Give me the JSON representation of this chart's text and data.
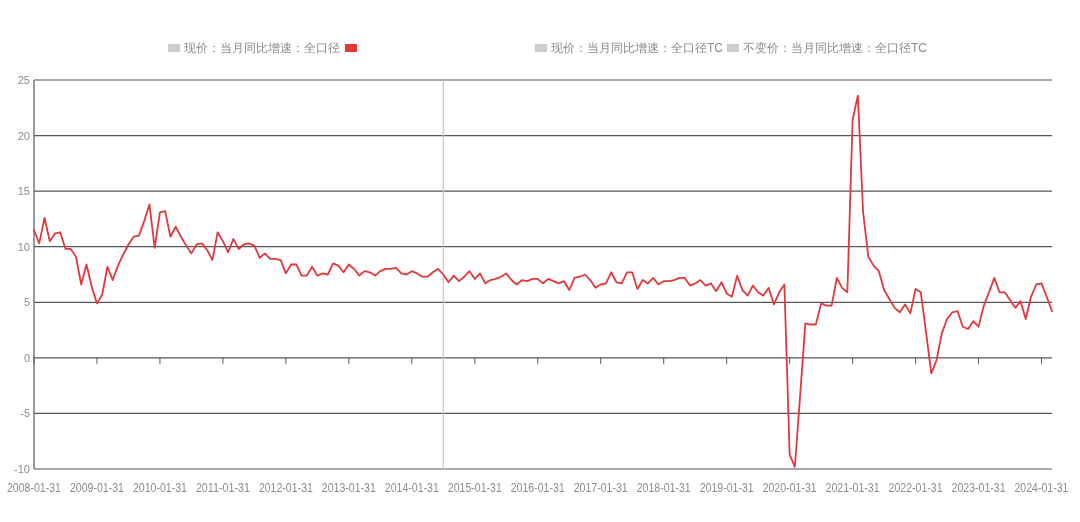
{
  "chart_data": {
    "type": "line",
    "x": [
      "2008-01",
      "2008-02",
      "2008-03",
      "2008-04",
      "2008-05",
      "2008-06",
      "2008-07",
      "2008-08",
      "2008-09",
      "2008-10",
      "2008-11",
      "2008-12",
      "2009-01",
      "2009-02",
      "2009-03",
      "2009-04",
      "2009-05",
      "2009-06",
      "2009-07",
      "2009-08",
      "2009-09",
      "2009-10",
      "2009-11",
      "2009-12",
      "2010-01",
      "2010-02",
      "2010-03",
      "2010-04",
      "2010-05",
      "2010-06",
      "2010-07",
      "2010-08",
      "2010-09",
      "2010-10",
      "2010-11",
      "2010-12",
      "2011-01",
      "2011-02",
      "2011-03",
      "2011-04",
      "2011-05",
      "2011-06",
      "2011-07",
      "2011-08",
      "2011-09",
      "2011-10",
      "2011-11",
      "2011-12",
      "2012-01",
      "2012-02",
      "2012-03",
      "2012-04",
      "2012-05",
      "2012-06",
      "2012-07",
      "2012-08",
      "2012-09",
      "2012-10",
      "2012-11",
      "2012-12",
      "2013-01",
      "2013-02",
      "2013-03",
      "2013-04",
      "2013-05",
      "2013-06",
      "2013-07",
      "2013-08",
      "2013-09",
      "2013-10",
      "2013-11",
      "2013-12",
      "2014-01",
      "2014-02",
      "2014-03",
      "2014-04",
      "2014-05",
      "2014-06",
      "2014-07",
      "2014-08",
      "2014-09",
      "2014-10",
      "2014-11",
      "2014-12",
      "2015-01",
      "2015-02",
      "2015-03",
      "2015-04",
      "2015-05",
      "2015-06",
      "2015-07",
      "2015-08",
      "2015-09",
      "2015-10",
      "2015-11",
      "2015-12",
      "2016-01",
      "2016-02",
      "2016-03",
      "2016-04",
      "2016-05",
      "2016-06",
      "2016-07",
      "2016-08",
      "2016-09",
      "2016-10",
      "2016-11",
      "2016-12",
      "2017-01",
      "2017-02",
      "2017-03",
      "2017-04",
      "2017-05",
      "2017-06",
      "2017-07",
      "2017-08",
      "2017-09",
      "2017-10",
      "2017-11",
      "2017-12",
      "2018-01",
      "2018-02",
      "2018-03",
      "2018-04",
      "2018-05",
      "2018-06",
      "2018-07",
      "2018-08",
      "2018-09",
      "2018-10",
      "2018-11",
      "2018-12",
      "2019-01",
      "2019-02",
      "2019-03",
      "2019-04",
      "2019-05",
      "2019-06",
      "2019-07",
      "2019-08",
      "2019-09",
      "2019-10",
      "2019-11",
      "2019-12",
      "2020-01",
      "2020-02",
      "2020-03",
      "2020-04",
      "2020-05",
      "2020-06",
      "2020-07",
      "2020-08",
      "2020-09",
      "2020-10",
      "2020-11",
      "2020-12",
      "2021-01",
      "2021-02",
      "2021-03",
      "2021-04",
      "2021-05",
      "2021-06",
      "2021-07",
      "2021-08",
      "2021-09",
      "2021-10",
      "2021-11",
      "2021-12",
      "2022-01",
      "2022-02",
      "2022-03",
      "2022-04",
      "2022-05",
      "2022-06",
      "2022-07",
      "2022-08",
      "2022-09",
      "2022-10",
      "2022-11",
      "2022-12",
      "2023-01",
      "2023-02",
      "2023-03",
      "2023-04",
      "2023-05",
      "2023-06",
      "2023-07",
      "2023-08",
      "2023-09",
      "2023-10",
      "2023-11",
      "2023-12",
      "2024-01",
      "2024-02",
      "2024-03"
    ],
    "series": [
      {
        "name": "现价：当月同比增速：全口径",
        "color": "#cccccc",
        "values": [
          null,
          null,
          null,
          null,
          null,
          null,
          null,
          null,
          null,
          null,
          null,
          null,
          null,
          null,
          null,
          null,
          null,
          null,
          null,
          null,
          null,
          null,
          null,
          null,
          null,
          null,
          null,
          null,
          null,
          null,
          null,
          null,
          null,
          null,
          null,
          null,
          null,
          null,
          null,
          null,
          null,
          null,
          null,
          null,
          null,
          null,
          null,
          null,
          null,
          null,
          null,
          null,
          null,
          null,
          null,
          null,
          null,
          null,
          null,
          null,
          null,
          null,
          null,
          null,
          null,
          null,
          null,
          null,
          null,
          null,
          null,
          null,
          null,
          null,
          null,
          null,
          null,
          null,
          null,
          null,
          null,
          null,
          null,
          null,
          null,
          null,
          null,
          null,
          null,
          null,
          null,
          null,
          null,
          null,
          null,
          null,
          null,
          null,
          null,
          null,
          null,
          null,
          null,
          null,
          null,
          null,
          null,
          null,
          null,
          null,
          null,
          null,
          null,
          null,
          null,
          null,
          null,
          null,
          null,
          null,
          null,
          null,
          null,
          null,
          null,
          null,
          null,
          null,
          null,
          null,
          null,
          null,
          null,
          null,
          null,
          null,
          null,
          null,
          null,
          null,
          null,
          null,
          null,
          null,
          null,
          null,
          null,
          null,
          null,
          null,
          null,
          null,
          null,
          null,
          null,
          null,
          null,
          null,
          null,
          null,
          null,
          null,
          null,
          null,
          null,
          null,
          null,
          null,
          null,
          null,
          null,
          null,
          null,
          null,
          null,
          null,
          null,
          null,
          null,
          null,
          null,
          null,
          null,
          null,
          null,
          null,
          null,
          null,
          null,
          null,
          null,
          null,
          null,
          null,
          null
        ]
      },
      {
        "color": "#e0393e",
        "values": [
          11.5,
          10.3,
          12.6,
          10.5,
          11.2,
          11.3,
          9.8,
          9.8,
          9.1,
          6.6,
          8.4,
          6.4,
          4.9,
          5.7,
          8.2,
          7.0,
          8.3,
          9.3,
          10.2,
          10.9,
          11.0,
          12.3,
          13.8,
          9.9,
          13.1,
          13.2,
          10.9,
          11.8,
          10.9,
          10.1,
          9.4,
          10.2,
          10.3,
          9.7,
          8.8,
          11.3,
          10.5,
          9.5,
          10.7,
          9.8,
          10.2,
          10.3,
          10.1,
          9.0,
          9.4,
          8.9,
          8.9,
          8.8,
          7.6,
          8.4,
          8.4,
          7.4,
          7.4,
          8.2,
          7.4,
          7.6,
          7.5,
          8.5,
          8.3,
          7.7,
          8.4,
          8.0,
          7.4,
          7.8,
          7.7,
          7.4,
          7.8,
          8.0,
          8.0,
          8.1,
          7.6,
          7.5,
          7.8,
          7.6,
          7.3,
          7.3,
          7.7,
          8.0,
          7.5,
          6.8,
          7.4,
          6.9,
          7.3,
          7.8,
          7.1,
          7.6,
          6.7,
          7.0,
          7.1,
          7.3,
          7.6,
          7.0,
          6.6,
          7.0,
          6.9,
          7.1,
          7.1,
          6.7,
          7.1,
          6.9,
          6.7,
          6.9,
          6.1,
          7.2,
          7.3,
          7.5,
          7.0,
          6.3,
          6.6,
          6.7,
          7.7,
          6.8,
          6.7,
          7.7,
          7.7,
          6.2,
          7.0,
          6.7,
          7.2,
          6.6,
          6.9,
          6.9,
          7.0,
          7.2,
          7.2,
          6.5,
          6.7,
          7.0,
          6.5,
          6.7,
          6.0,
          6.8,
          5.8,
          5.5,
          7.4,
          6.1,
          5.6,
          6.5,
          5.9,
          5.6,
          6.3,
          4.8,
          5.9,
          6.6,
          -8.7,
          -9.8,
          -3.4,
          3.1,
          3.0,
          3.0,
          4.9,
          4.7,
          4.7,
          7.2,
          6.3,
          5.9,
          21.4,
          23.6,
          13.1,
          9.1,
          8.3,
          7.8,
          6.1,
          5.3,
          4.5,
          4.1,
          4.8,
          4.0,
          6.2,
          5.9,
          2.3,
          -1.4,
          -0.2,
          2.2,
          3.5,
          4.1,
          4.2,
          2.8,
          2.6,
          3.3,
          2.8,
          4.7,
          5.9,
          7.2,
          5.9,
          5.9,
          5.2,
          4.5,
          5.1,
          3.5,
          5.5,
          6.6,
          6.7,
          5.5,
          4.2
        ]
      },
      {
        "name": "现价：当月同比增速：全口径TC",
        "color": "#cccccc",
        "values": [
          null,
          null,
          null,
          null,
          null,
          null,
          null,
          null,
          null,
          null,
          null,
          null,
          null,
          null,
          null,
          null,
          null,
          null,
          null,
          null,
          null,
          null,
          null,
          null,
          null,
          null,
          null,
          null,
          null,
          null,
          null,
          null,
          null,
          null,
          null,
          null,
          null,
          null,
          null,
          null,
          null,
          null,
          null,
          null,
          null,
          null,
          null,
          null,
          null,
          null,
          null,
          null,
          null,
          null,
          null,
          null,
          null,
          null,
          null,
          null,
          null,
          null,
          null,
          null,
          null,
          null,
          null,
          null,
          null,
          null,
          null,
          null,
          null,
          null,
          null,
          null,
          null,
          null,
          null,
          null,
          null,
          null,
          null,
          null,
          null,
          null,
          null,
          null,
          null,
          null,
          null,
          null,
          null,
          null,
          null,
          null,
          null,
          null,
          null,
          null,
          null,
          null,
          null,
          null,
          null,
          null,
          null,
          null,
          null,
          null,
          null,
          null,
          null,
          null,
          null,
          null,
          null,
          null,
          null,
          null,
          null,
          null,
          null,
          null,
          null,
          null,
          null,
          null,
          null,
          null,
          null,
          null,
          null,
          null,
          null,
          null,
          null,
          null,
          null,
          null,
          null,
          null,
          null,
          null,
          null,
          null,
          null,
          null,
          null,
          null,
          null,
          null,
          null,
          null,
          null,
          null,
          null,
          null,
          null,
          null,
          null,
          null,
          null,
          null,
          null,
          null,
          null,
          null,
          null,
          null,
          null,
          null,
          null,
          null,
          null,
          null,
          null,
          null,
          null,
          null,
          null,
          null,
          null,
          null,
          null,
          null,
          null,
          null,
          null,
          null,
          null,
          null,
          null,
          null,
          null
        ]
      },
      {
        "name": "不变价：当月同比增速：全口径TC",
        "color": "#cccccc",
        "values": [
          null,
          null,
          null,
          null,
          null,
          null,
          null,
          null,
          null,
          null,
          null,
          null,
          null,
          null,
          null,
          null,
          null,
          null,
          null,
          null,
          null,
          null,
          null,
          null,
          null,
          null,
          null,
          null,
          null,
          null,
          null,
          null,
          null,
          null,
          null,
          null,
          null,
          null,
          null,
          null,
          null,
          null,
          null,
          null,
          null,
          null,
          null,
          null,
          null,
          null,
          null,
          null,
          null,
          null,
          null,
          null,
          null,
          null,
          null,
          null,
          null,
          null,
          null,
          null,
          null,
          null,
          null,
          null,
          null,
          null,
          null,
          null,
          null,
          null,
          null,
          null,
          null,
          null,
          null,
          null,
          null,
          null,
          null,
          null,
          null,
          null,
          null,
          null,
          null,
          null,
          null,
          null,
          null,
          null,
          null,
          null,
          null,
          null,
          null,
          null,
          null,
          null,
          null,
          null,
          null,
          null,
          null,
          null,
          null,
          null,
          null,
          null,
          null,
          null,
          null,
          null,
          null,
          null,
          null,
          null,
          null,
          null,
          null,
          null,
          null,
          null,
          null,
          null,
          null,
          null,
          null,
          null,
          null,
          null,
          null,
          null,
          null,
          null,
          null,
          null,
          null,
          null,
          null,
          null,
          null,
          null,
          null,
          null,
          null,
          null,
          null,
          null,
          null,
          null,
          null,
          null,
          null,
          null,
          null,
          null,
          null,
          null,
          null,
          null,
          null,
          null,
          null,
          null,
          null,
          null,
          null,
          null,
          null,
          null,
          null,
          null,
          null,
          null,
          null,
          null,
          null,
          null,
          null,
          null,
          null,
          null,
          null,
          null,
          null,
          null,
          null,
          null,
          null,
          null,
          null
        ]
      }
    ],
    "xlim": [
      "2008-01",
      "2024-03"
    ],
    "xticks": [
      {
        "value": "2008-01",
        "label": "2008-01-31"
      },
      {
        "value": "2009-01",
        "label": "2009-01-31"
      },
      {
        "value": "2010-01",
        "label": "2010-01-31"
      },
      {
        "value": "2011-01",
        "label": "2011-01-31"
      },
      {
        "value": "2012-01",
        "label": "2012-01-31"
      },
      {
        "value": "2013-01",
        "label": "2013-01-31"
      },
      {
        "value": "2014-01",
        "label": "2014-01-31"
      },
      {
        "value": "2015-01",
        "label": "2015-01-31"
      },
      {
        "value": "2016-01",
        "label": "2016-01-31"
      },
      {
        "value": "2017-01",
        "label": "2017-01-31"
      },
      {
        "value": "2018-01",
        "label": "2018-01-31"
      },
      {
        "value": "2019-01",
        "label": "2019-01-31"
      },
      {
        "value": "2020-01",
        "label": "2020-01-31"
      },
      {
        "value": "2021-01",
        "label": "2021-01-31"
      },
      {
        "value": "2022-01",
        "label": "2022-01-31"
      },
      {
        "value": "2023-01",
        "label": "2023-01-31"
      },
      {
        "value": "2024-01",
        "label": "2024-01-31"
      }
    ],
    "ylim": [
      -10,
      25
    ],
    "yticks": [
      -10,
      -5,
      0,
      5,
      10,
      15,
      20,
      25
    ],
    "ref_lines": [
      {
        "axis": "x",
        "value": "2014-07",
        "color": "#c8c8c8"
      }
    ],
    "grid": "y",
    "legend": "top",
    "marker": "none",
    "line_style": "solid"
  }
}
